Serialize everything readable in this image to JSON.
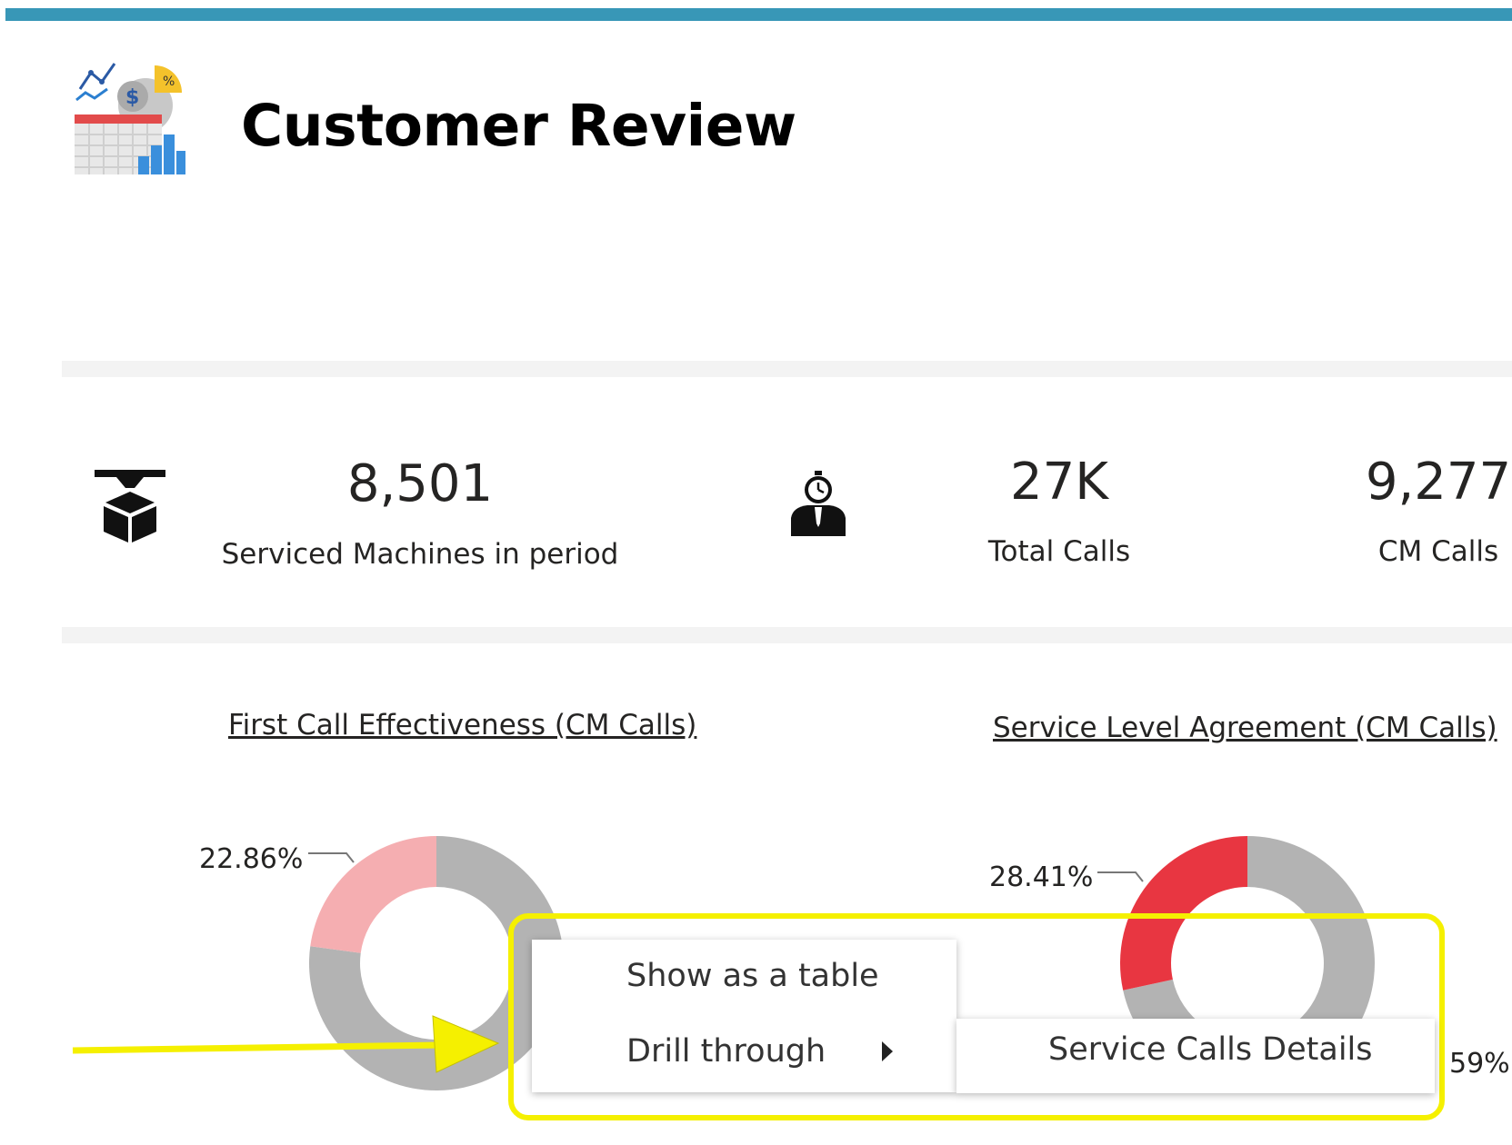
{
  "header": {
    "title": "Customer Review",
    "icon": "report-analytics-icon",
    "accent_color": "#3897b7"
  },
  "kpis": [
    {
      "value": "8,501",
      "label": "Serviced Machines in period",
      "icon": "machine-icon"
    },
    {
      "value": "27K",
      "label": "Total Calls",
      "icon": "technician-stopwatch-icon"
    },
    {
      "value": "9,277",
      "label": "CM Calls"
    }
  ],
  "charts": [
    {
      "title": "First Call Effectiveness (CM Calls)",
      "type": "donut",
      "slices": [
        {
          "value": 77.14,
          "color": "#b3b3b3"
        },
        {
          "value": 22.86,
          "color": "#f5aeb1"
        }
      ],
      "label": "22.86%"
    },
    {
      "title": "Service Level Agreement (CM Calls)",
      "type": "donut",
      "slices": [
        {
          "value": 71.59,
          "color": "#b3b3b3"
        },
        {
          "value": 28.41,
          "color": "#e83641"
        }
      ],
      "label": "28.41%",
      "label2": "59%"
    }
  ],
  "context_menu": {
    "items": [
      {
        "label": "Show as a table"
      },
      {
        "label": "Drill through",
        "arrow": "submenu-arrow-icon"
      }
    ],
    "submenu": {
      "items": [
        {
          "label": "Service Calls Details"
        }
      ]
    }
  },
  "annotation": {
    "highlight_color": "#f5f000",
    "arrow_color": "#f5f000"
  }
}
